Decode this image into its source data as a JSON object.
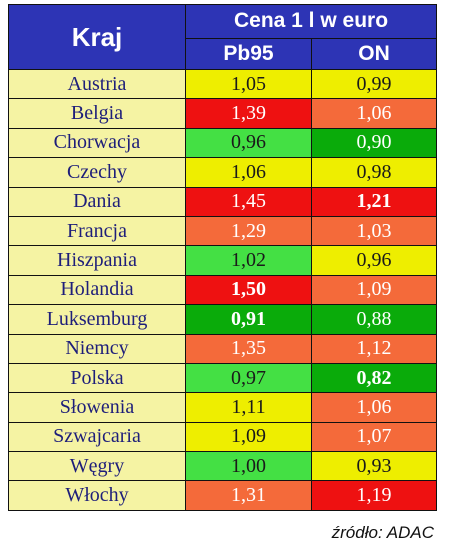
{
  "header": {
    "country_col": "Kraj",
    "price_title": "Cena 1 l w euro",
    "col_pb95": "Pb95",
    "col_on": "ON"
  },
  "colors": {
    "yellow": "#eeee00",
    "orange": "#f46a3a",
    "red": "#ee1111",
    "light_green": "#44e044",
    "dark_green": "#0aab0a"
  },
  "rows": [
    {
      "country": "Austria",
      "pb95": "1,05",
      "pb95_color": "yellow",
      "pb95_bold": false,
      "on": "0,99",
      "on_color": "yellow",
      "on_bold": false
    },
    {
      "country": "Belgia",
      "pb95": "1,39",
      "pb95_color": "red",
      "pb95_bold": false,
      "on": "1,06",
      "on_color": "orange",
      "on_bold": false
    },
    {
      "country": "Chorwacja",
      "pb95": "0,96",
      "pb95_color": "light_green",
      "pb95_bold": false,
      "on": "0,90",
      "on_color": "dark_green",
      "on_bold": false
    },
    {
      "country": "Czechy",
      "pb95": "1,06",
      "pb95_color": "yellow",
      "pb95_bold": false,
      "on": "0,98",
      "on_color": "yellow",
      "on_bold": false
    },
    {
      "country": "Dania",
      "pb95": "1,45",
      "pb95_color": "red",
      "pb95_bold": false,
      "on": "1,21",
      "on_color": "red",
      "on_bold": true
    },
    {
      "country": "Francja",
      "pb95": "1,29",
      "pb95_color": "orange",
      "pb95_bold": false,
      "on": "1,03",
      "on_color": "orange",
      "on_bold": false
    },
    {
      "country": "Hiszpania",
      "pb95": "1,02",
      "pb95_color": "light_green",
      "pb95_bold": false,
      "on": "0,96",
      "on_color": "yellow",
      "on_bold": false
    },
    {
      "country": "Holandia",
      "pb95": "1,50",
      "pb95_color": "red",
      "pb95_bold": true,
      "on": "1,09",
      "on_color": "orange",
      "on_bold": false
    },
    {
      "country": "Luksemburg",
      "pb95": "0,91",
      "pb95_color": "dark_green",
      "pb95_bold": true,
      "on": "0,88",
      "on_color": "dark_green",
      "on_bold": false
    },
    {
      "country": "Niemcy",
      "pb95": "1,35",
      "pb95_color": "orange",
      "pb95_bold": false,
      "on": "1,12",
      "on_color": "orange",
      "on_bold": false
    },
    {
      "country": "Polska",
      "pb95": "0,97",
      "pb95_color": "light_green",
      "pb95_bold": false,
      "on": "0,82",
      "on_color": "dark_green",
      "on_bold": true
    },
    {
      "country": "Słowenia",
      "pb95": "1,11",
      "pb95_color": "yellow",
      "pb95_bold": false,
      "on": "1,06",
      "on_color": "orange",
      "on_bold": false
    },
    {
      "country": "Szwajcaria",
      "pb95": "1,09",
      "pb95_color": "yellow",
      "pb95_bold": false,
      "on": "1,07",
      "on_color": "orange",
      "on_bold": false
    },
    {
      "country": "Węgry",
      "pb95": "1,00",
      "pb95_color": "light_green",
      "pb95_bold": false,
      "on": "0,93",
      "on_color": "yellow",
      "on_bold": false
    },
    {
      "country": "Włochy",
      "pb95": "1,31",
      "pb95_color": "orange",
      "pb95_bold": false,
      "on": "1,19",
      "on_color": "red",
      "on_bold": false
    }
  ],
  "source": "źródło: ADAC"
}
